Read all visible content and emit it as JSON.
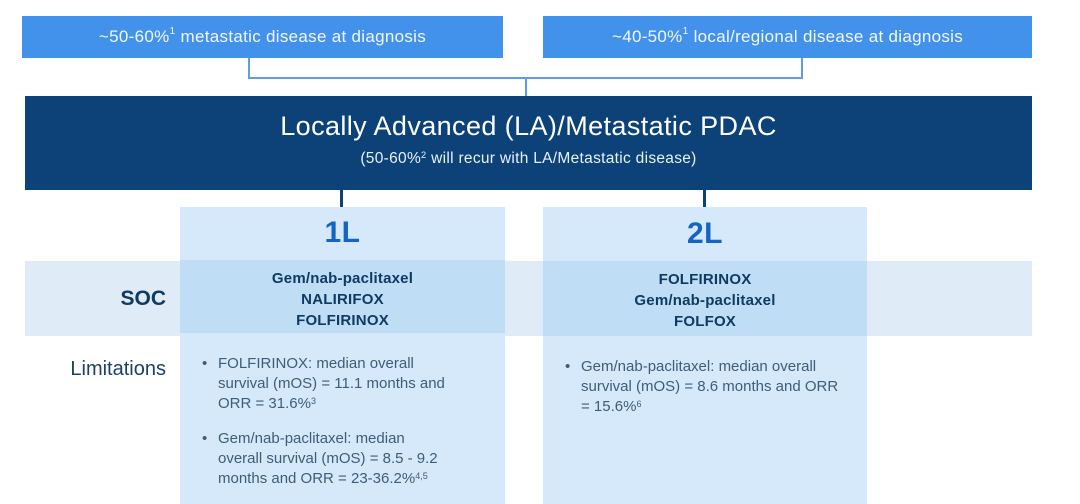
{
  "top_boxes": {
    "left": {
      "pre": "~50-60%",
      "sup": "1",
      "post": " metastatic disease at diagnosis"
    },
    "right": {
      "pre": "~40-50%",
      "sup": "1",
      "post": " local/regional disease at diagnosis"
    }
  },
  "main_box": {
    "title": "Locally Advanced (LA)/Metastatic PDAC",
    "subtitle_pre": "(50-60%",
    "subtitle_sup": "2",
    "subtitle_post": " will recur with LA/Metastatic disease)"
  },
  "row_labels": {
    "soc": "SOC",
    "limitations": "Limitations"
  },
  "columns": {
    "first_line": {
      "header": "1L",
      "soc": [
        "Gem/nab-paclitaxel",
        "NALIRIFOX",
        "FOLFIRINOX"
      ],
      "limitations": [
        {
          "text": "FOLFIRINOX: median overall survival (mOS) = 11.1 months and ORR = 31.6%",
          "sup": "3"
        },
        {
          "text": "Gem/nab-paclitaxel: median overall survival (mOS) = 8.5 - 9.2 months and ORR = 23-36.2%",
          "sup": "4,5"
        }
      ]
    },
    "second_line": {
      "header": "2L",
      "soc": [
        "FOLFIRINOX",
        "Gem/nab-paclitaxel",
        "FOLFOX"
      ],
      "limitations": [
        {
          "text": "Gem/nab-paclitaxel: median overall survival (mOS) = 8.6 months and ORR = 15.6%",
          "sup": "6"
        }
      ]
    }
  },
  "ui": {
    "bullet": "•"
  },
  "colors": {
    "box_blue": "#4292eb",
    "navy": "#0d4278",
    "bracket": "#5e9ee6",
    "header_blue": "#1563c2",
    "column_bg": "#d5e9fa",
    "band_bg": "#dfebf6",
    "intersect_bg": "#bfddf4",
    "soc_text": "#0f3a63",
    "body_text": "#3f5c78",
    "label_text": "#1c4066"
  }
}
